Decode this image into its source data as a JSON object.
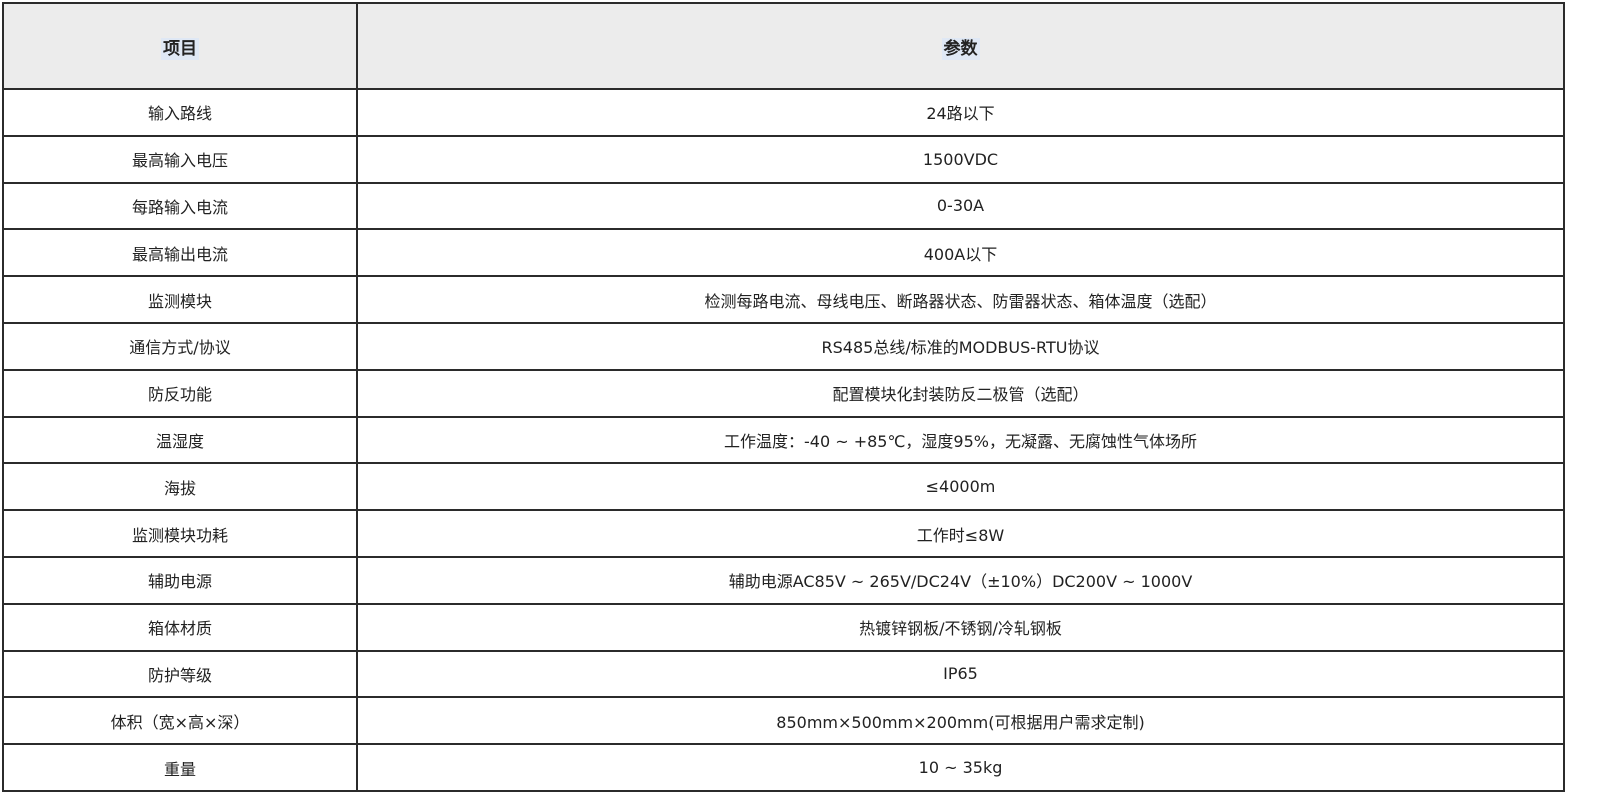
{
  "header": {
    "item": "项目",
    "param": "参数"
  },
  "rows": [
    {
      "item": "输入路线",
      "value": "24路以下"
    },
    {
      "item": "最高输入电压",
      "value": "1500VDC"
    },
    {
      "item": "每路输入电流",
      "value": "0-30A"
    },
    {
      "item": "最高输出电流",
      "value": "400A以下"
    },
    {
      "item": "监测模块",
      "value": "检测每路电流、母线电压、断路器状态、防雷器状态、箱体温度（选配）"
    },
    {
      "item": "通信方式/协议",
      "value": "RS485总线/标准的MODBUS-RTU协议"
    },
    {
      "item": "防反功能",
      "value": "配置模块化封装防反二极管（选配）"
    },
    {
      "item": "温湿度",
      "value": "工作温度：-40 ~ +85℃，湿度95%，无凝露、无腐蚀性气体场所"
    },
    {
      "item": "海拔",
      "value": "≤4000m"
    },
    {
      "item": "监测模块功耗",
      "value": "工作时≤8W"
    },
    {
      "item": "辅助电源",
      "value": "辅助电源AC85V ~ 265V/DC24V（±10%）DC200V ~ 1000V"
    },
    {
      "item": "箱体材质",
      "value": "热镀锌钢板/不锈钢/冷轧钢板"
    },
    {
      "item": "防护等级",
      "value": "IP65"
    },
    {
      "item": "体积（宽×高×深）",
      "value": "850mm×500mm×200mm(可根据用户需求定制)"
    },
    {
      "item": "重量",
      "value": "10 ~ 35kg"
    }
  ]
}
